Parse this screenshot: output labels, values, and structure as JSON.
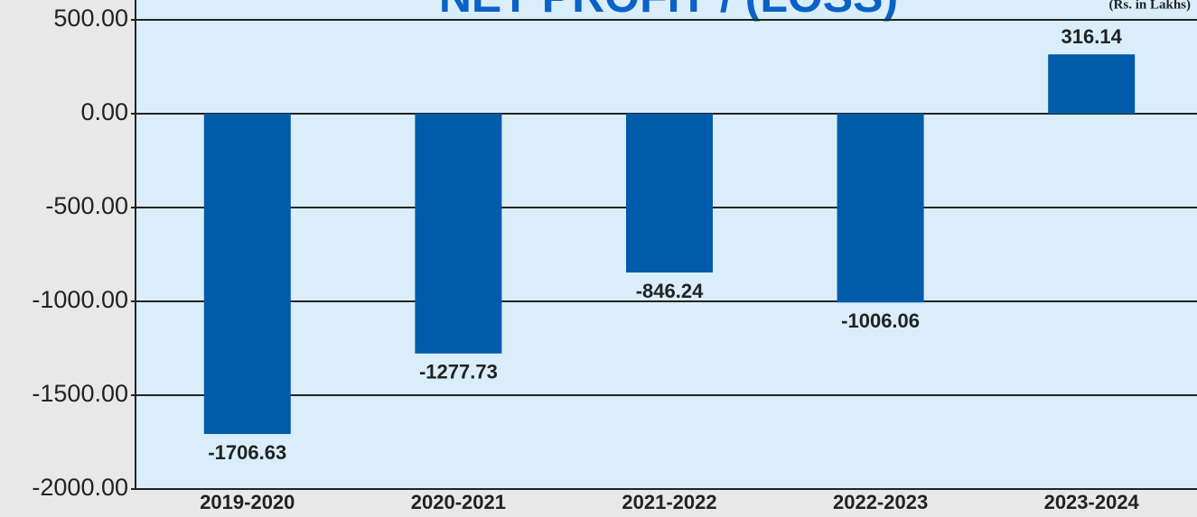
{
  "chart_data": {
    "type": "bar",
    "title": "NET PROFIT / (LOSS)",
    "subtitle": "(Rs. in Lakhs)",
    "categories": [
      "2019-2020",
      "2020-2021",
      "2021-2022",
      "2022-2023",
      "2023-2024"
    ],
    "values": [
      -1706.63,
      -1277.73,
      -846.24,
      -1006.06,
      316.14
    ],
    "color": "#005bab",
    "ylim": [
      -2000,
      500
    ],
    "yticks": [
      {
        "value": 500,
        "label": "500.00"
      },
      {
        "value": 0,
        "label": "0.00"
      },
      {
        "value": -500,
        "label": "-500.00"
      },
      {
        "value": -1000,
        "label": "-1000.00"
      },
      {
        "value": -1500,
        "label": "-1500.00"
      },
      {
        "value": -2000,
        "label": "-2000.00"
      }
    ],
    "grid": true
  }
}
